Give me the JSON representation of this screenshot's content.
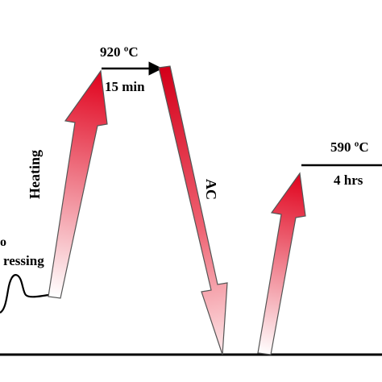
{
  "diagram": {
    "labels": {
      "peak_temperature": "920 ºC",
      "peak_hold_time": "15 min",
      "heating": "Heating",
      "cooling": "AC",
      "second_temperature": "590 ºC",
      "second_hold_time": "4 hrs",
      "pressing_partial_1": "o",
      "pressing_partial_2": "ressing"
    },
    "colors": {
      "arrow_red": "#e0001b",
      "arrow_fade": "#ffffff",
      "line": "#000000"
    }
  }
}
